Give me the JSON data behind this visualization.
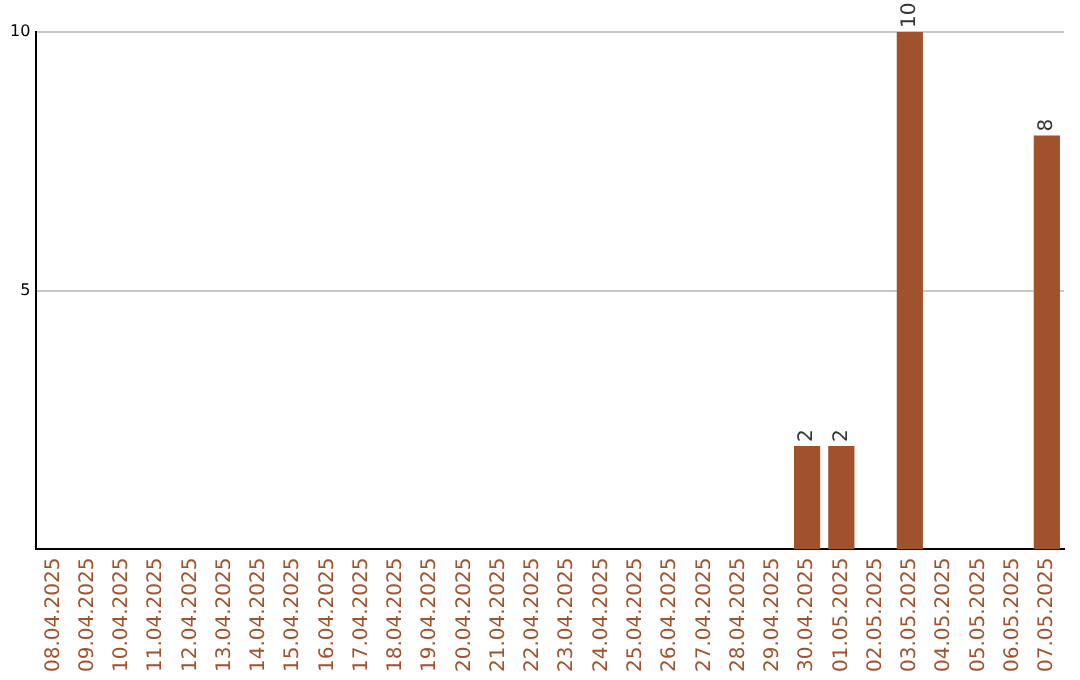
{
  "chart_data": {
    "type": "bar",
    "categories": [
      "08.04.2025",
      "09.04.2025",
      "10.04.2025",
      "11.04.2025",
      "12.04.2025",
      "13.04.2025",
      "14.04.2025",
      "15.04.2025",
      "16.04.2025",
      "17.04.2025",
      "18.04.2025",
      "19.04.2025",
      "20.04.2025",
      "21.04.2025",
      "22.04.2025",
      "23.04.2025",
      "24.04.2025",
      "25.04.2025",
      "26.04.2025",
      "27.04.2025",
      "28.04.2025",
      "29.04.2025",
      "30.04.2025",
      "01.05.2025",
      "02.05.2025",
      "03.05.2025",
      "04.05.2025",
      "05.05.2025",
      "06.05.2025",
      "07.05.2025"
    ],
    "values": [
      0,
      0,
      0,
      0,
      0,
      0,
      0,
      0,
      0,
      0,
      0,
      0,
      0,
      0,
      0,
      0,
      0,
      0,
      0,
      0,
      0,
      0,
      2,
      2,
      0,
      10,
      0,
      0,
      0,
      8
    ],
    "value_labels": [
      null,
      null,
      null,
      null,
      null,
      null,
      null,
      null,
      null,
      null,
      null,
      null,
      null,
      null,
      null,
      null,
      null,
      null,
      null,
      null,
      null,
      null,
      "2",
      "2",
      null,
      "10",
      null,
      null,
      null,
      "8"
    ],
    "color": "#a0522d",
    "ylim": [
      0,
      10
    ],
    "yticks": [
      5,
      10
    ],
    "grid": "y",
    "legend": false
  }
}
